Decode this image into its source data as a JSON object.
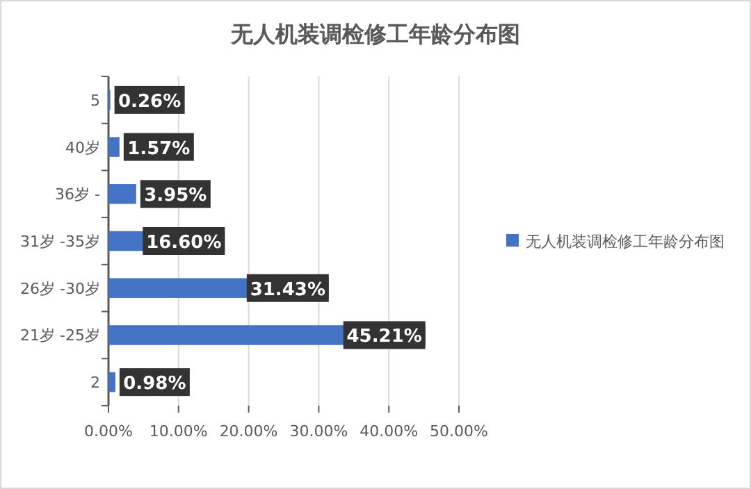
{
  "chart_data": {
    "type": "bar",
    "orientation": "horizontal",
    "title": "无人机装调检修工年龄分布图",
    "categories": [
      "5",
      "40岁",
      "36岁 -",
      "31岁 -35岁",
      "26岁 -30岁",
      "21岁 -25岁",
      "2"
    ],
    "series": [
      {
        "name": "无人机装调检修工年龄分布图",
        "color": "#4472c4",
        "values": [
          0.26,
          1.57,
          3.95,
          16.6,
          31.43,
          45.21,
          0.98
        ],
        "value_labels": [
          "0.26%",
          "1.57%",
          "3.95%",
          "16.60%",
          "31.43%",
          "45.21%",
          "0.98%"
        ]
      }
    ],
    "xlim": [
      0,
      50
    ],
    "xticks": [
      {
        "value": 0,
        "label": "0.00%"
      },
      {
        "value": 10,
        "label": "10.00%"
      },
      {
        "value": 20,
        "label": "20.00%"
      },
      {
        "value": 30,
        "label": "30.00%"
      },
      {
        "value": 40,
        "label": "40.00%"
      },
      {
        "value": 50,
        "label": "50.00%"
      }
    ],
    "grid": "x",
    "legend": "right"
  }
}
